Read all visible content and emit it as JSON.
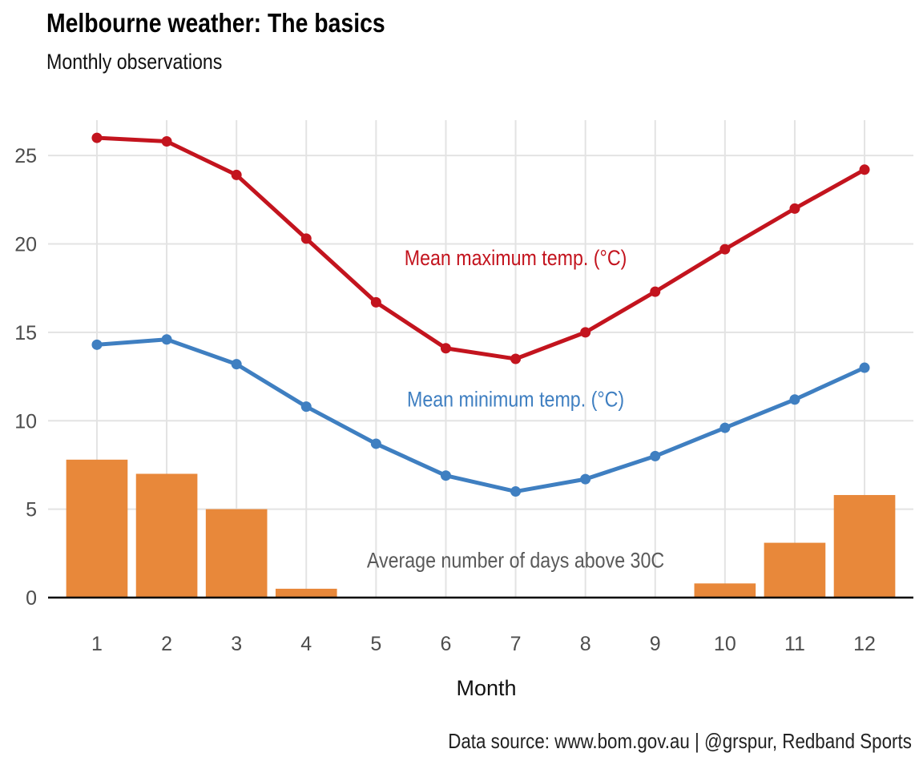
{
  "title": "Melbourne weather: The basics",
  "subtitle": "Monthly observations",
  "caption": "Data source: www.bom.gov.au  |  @grspur, Redband Sports",
  "colors": {
    "max": "#c3141e",
    "min": "#3f7fc1",
    "bars": "#e8883a",
    "grid": "#e3e3e3",
    "annot_bars": "#595959"
  },
  "chart_data": {
    "type": "line",
    "xlabel": "Month",
    "ylabel": "",
    "xlim": [
      0.3,
      12.7
    ],
    "ylim": [
      0,
      27
    ],
    "x": [
      1,
      2,
      3,
      4,
      5,
      6,
      7,
      8,
      9,
      10,
      11,
      12
    ],
    "xticks": [
      "1",
      "2",
      "3",
      "4",
      "5",
      "6",
      "7",
      "8",
      "9",
      "10",
      "11",
      "12"
    ],
    "yticks": [
      "0",
      "5",
      "10",
      "15",
      "20",
      "25"
    ],
    "series": [
      {
        "name": "Mean maximum temp. (°C)",
        "kind": "line",
        "color": "#c3141e",
        "values": [
          26.0,
          25.8,
          23.9,
          20.3,
          16.7,
          14.1,
          13.5,
          15.0,
          17.3,
          19.7,
          22.0,
          24.2
        ]
      },
      {
        "name": "Mean minimum temp. (°C)",
        "kind": "line",
        "color": "#3f7fc1",
        "values": [
          14.3,
          14.6,
          13.2,
          10.8,
          8.7,
          6.9,
          6.0,
          6.7,
          8.0,
          9.6,
          11.2,
          13.0
        ]
      },
      {
        "name": "Average number of days above 30C",
        "kind": "bar",
        "color": "#e8883a",
        "values": [
          7.8,
          7.0,
          5.0,
          0.5,
          0,
          0,
          0,
          0,
          0,
          0.8,
          3.1,
          5.8
        ]
      }
    ],
    "annotations": [
      {
        "text": "Mean maximum temp. (°C)",
        "x": 7,
        "y": 18.8,
        "color": "#c3141e"
      },
      {
        "text": "Mean minimum temp. (°C)",
        "x": 7,
        "y": 10.8,
        "color": "#3f7fc1"
      },
      {
        "text": "Average number of days above 30C",
        "x": 7,
        "y": 1.7,
        "color": "#595959"
      }
    ],
    "grid": true,
    "legend": "none"
  }
}
